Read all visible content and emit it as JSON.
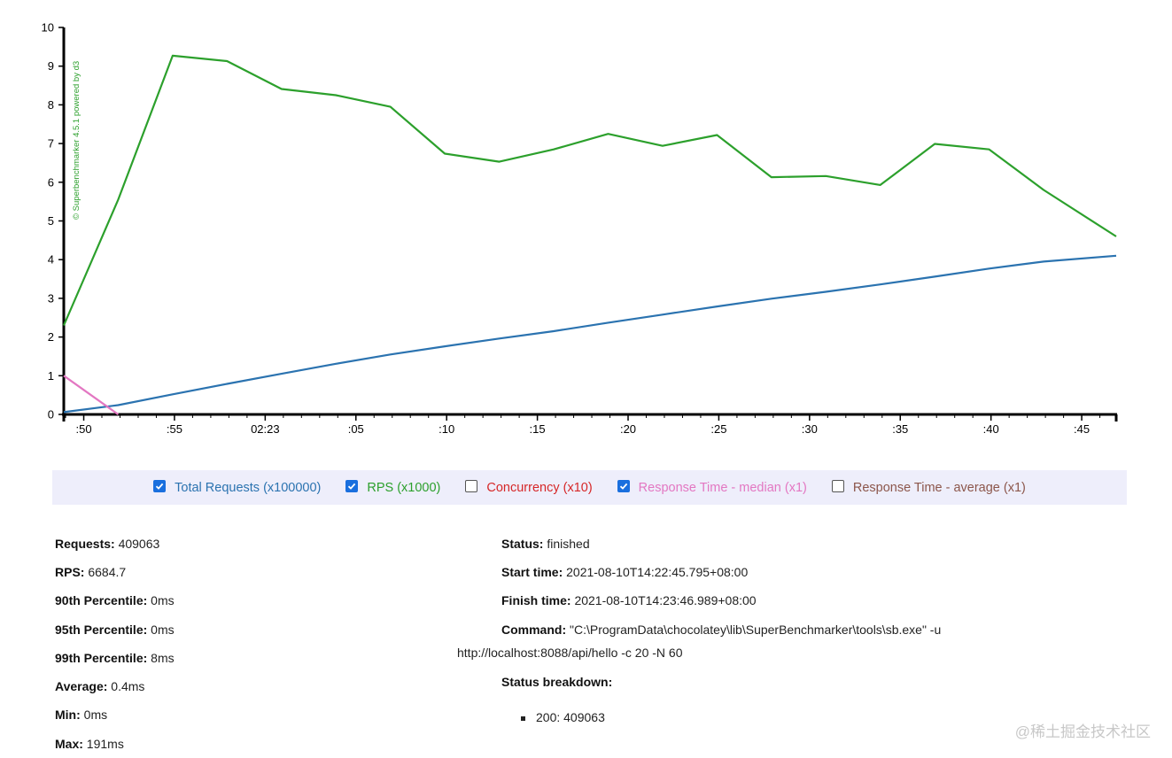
{
  "chart_data": {
    "type": "line",
    "credit": "© Superbenchmarker 4.5.1 powered by d3",
    "ylim": [
      0,
      10
    ],
    "y_ticks": [
      "0",
      "1",
      "2",
      "3",
      "4",
      "5",
      "6",
      "7",
      "8",
      "9",
      "10"
    ],
    "x_tick_labels": [
      ":50",
      ":55",
      "02:23",
      ":05",
      ":10",
      ":15",
      ":20",
      ":25",
      ":30",
      ":35",
      ":40",
      ":45"
    ],
    "x_ticks_sec": [
      -32.7,
      -27.7,
      -22.7,
      -17.7,
      -12.7,
      -7.7,
      -2.7,
      2.3,
      7.3,
      12.3,
      17.3,
      22.3
    ],
    "xlim": [
      -33.8,
      24.2
    ],
    "series": [
      {
        "name": "Total Requests (x100000)",
        "color": "#2b73b0",
        "x": [
          -33.8,
          -30.8,
          -27.8,
          -24.8,
          -21.8,
          -18.8,
          -15.8,
          -12.8,
          -9.8,
          -6.8,
          -3.8,
          -0.8,
          2.2,
          5.2,
          8.2,
          11.2,
          14.2,
          17.2,
          20.2,
          24.2
        ],
        "values": [
          0.06,
          0.24,
          0.52,
          0.79,
          1.05,
          1.31,
          1.55,
          1.76,
          1.96,
          2.15,
          2.37,
          2.58,
          2.79,
          2.99,
          3.17,
          3.36,
          3.56,
          3.77,
          3.95,
          4.1
        ]
      },
      {
        "name": "RPS (x1000)",
        "color": "#2ca02c",
        "x": [
          -33.8,
          -30.8,
          -27.8,
          -24.8,
          -21.8,
          -18.8,
          -15.8,
          -12.8,
          -9.8,
          -6.8,
          -3.8,
          -0.8,
          2.2,
          5.2,
          8.2,
          11.2,
          14.2,
          17.2,
          20.2,
          24.2
        ],
        "values": [
          2.3,
          5.55,
          9.27,
          9.13,
          8.41,
          8.25,
          7.95,
          6.74,
          6.53,
          6.85,
          7.25,
          6.94,
          7.22,
          6.13,
          6.16,
          5.93,
          6.99,
          6.85,
          5.8,
          4.6
        ]
      },
      {
        "name": "Response Time - median (x1)",
        "color": "#e377c2",
        "x": [
          -33.8,
          -30.8
        ],
        "values": [
          1.0,
          0.0
        ]
      }
    ]
  },
  "legend": [
    {
      "label": "Total Requests (x100000)",
      "checked": true,
      "color": "#2b73b0"
    },
    {
      "label": "RPS (x1000)",
      "checked": true,
      "color": "#2ca02c"
    },
    {
      "label": "Concurrency (x10)",
      "checked": false,
      "color": "#d62728"
    },
    {
      "label": "Response Time - median (x1)",
      "checked": true,
      "color": "#e377c2"
    },
    {
      "label": "Response Time - average (x1)",
      "checked": false,
      "color": "#8c564b"
    }
  ],
  "stats_left": [
    {
      "label": "Requests:",
      "value": "409063"
    },
    {
      "label": "RPS:",
      "value": "6684.7"
    },
    {
      "label": "90th Percentile:",
      "value": "0ms"
    },
    {
      "label": "95th Percentile:",
      "value": "0ms"
    },
    {
      "label": "99th Percentile:",
      "value": "8ms"
    },
    {
      "label": "Average:",
      "value": "0.4ms"
    },
    {
      "label": "Min:",
      "value": "0ms"
    },
    {
      "label": "Max:",
      "value": "191ms"
    }
  ],
  "stats_right": {
    "status": {
      "label": "Status:",
      "value": "finished"
    },
    "start_time": {
      "label": "Start time:",
      "value": "2021-08-10T14:22:45.795+08:00"
    },
    "finish_time": {
      "label": "Finish time:",
      "value": "2021-08-10T14:23:46.989+08:00"
    },
    "command": {
      "label": "Command:",
      "value": "\"C:\\ProgramData\\chocolatey\\lib\\SuperBenchmarker\\tools\\sb.exe\" -u",
      "continuation": "http://localhost:8088/api/hello -c 20 -N 60"
    },
    "breakdown_label": "Status breakdown:",
    "breakdown_items": [
      "200: 409063"
    ]
  },
  "watermark": "@稀土掘金技术社区"
}
